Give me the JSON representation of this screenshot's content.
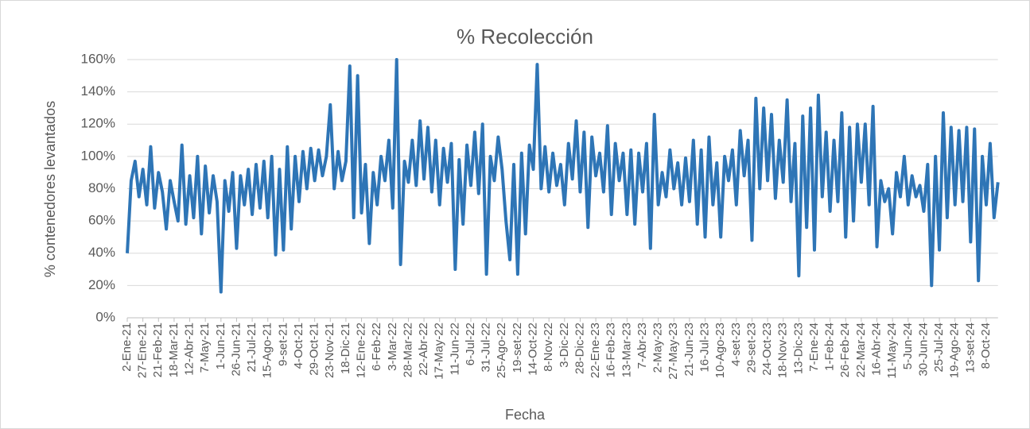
{
  "chart_data": {
    "type": "line",
    "title": "% Recolección",
    "x_label": "Fecha",
    "y_label": "% contenedores levantados",
    "categories": [
      "2-Ene-21",
      null,
      null,
      null,
      "27-Ene-21",
      null,
      null,
      null,
      "21-Feb-21",
      null,
      null,
      null,
      "18-Mar-21",
      null,
      null,
      null,
      "12-Abr-21",
      null,
      null,
      null,
      "7-May-21",
      null,
      null,
      null,
      "1-Jun-21",
      null,
      null,
      null,
      "26-Jun-21",
      null,
      null,
      null,
      "21-Jul-21",
      null,
      null,
      null,
      "15-Ago-21",
      null,
      null,
      null,
      "9-set-21",
      null,
      null,
      null,
      "4-Oct-21",
      null,
      null,
      null,
      "29-Oct-21",
      null,
      null,
      null,
      "23-Nov-21",
      null,
      null,
      null,
      "18-Dic-21",
      null,
      null,
      null,
      "12-Ene-22",
      null,
      null,
      null,
      "6-Feb-22",
      null,
      null,
      null,
      "3-Mar-22",
      null,
      null,
      null,
      "28-Mar-22",
      null,
      null,
      null,
      "22-Abr-22",
      null,
      null,
      null,
      "17-May-22",
      null,
      null,
      null,
      "11-Jun-22",
      null,
      null,
      null,
      "6-Jul-22",
      null,
      null,
      null,
      "31-Jul-22",
      null,
      null,
      null,
      "25-Ago-22",
      null,
      null,
      null,
      "19-set-22",
      null,
      null,
      null,
      "14-Oct-22",
      null,
      null,
      null,
      "8-Nov-22",
      null,
      null,
      null,
      "3-Dic-22",
      null,
      null,
      null,
      "28-Dic-22",
      null,
      null,
      null,
      "22-Ene-23",
      null,
      null,
      null,
      "16-Feb-23",
      null,
      null,
      null,
      "13-Mar-23",
      null,
      null,
      null,
      "7-Abr-23",
      null,
      null,
      null,
      "2-May-23",
      null,
      null,
      null,
      "27-May-23",
      null,
      null,
      null,
      "21-Jun-23",
      null,
      null,
      null,
      "16-Jul-23",
      null,
      null,
      null,
      "10-Ago-23",
      null,
      null,
      null,
      "4-set-23",
      null,
      null,
      null,
      "29-set-23",
      null,
      null,
      null,
      "24-Oct-23",
      null,
      null,
      null,
      "18-Nov-23",
      null,
      null,
      null,
      "13-Dic-23",
      null,
      null,
      null,
      "7-Ene-24",
      null,
      null,
      null,
      "1-Feb-24",
      null,
      null,
      null,
      "26-Feb-24",
      null,
      null,
      null,
      "22-Mar-24",
      null,
      null,
      null,
      "16-Abr-24",
      null,
      null,
      null,
      "11-May-24",
      null,
      null,
      null,
      "5-Jun-24",
      null,
      null,
      null,
      "30-Jun-24",
      null,
      null,
      null,
      "25-Jul-24",
      null,
      null,
      null,
      "19-Ago-24",
      null,
      null,
      null,
      "13-set-24",
      null,
      null,
      null,
      "8-Oct-24",
      null,
      null,
      null
    ],
    "values": [
      40,
      85,
      97,
      75,
      92,
      70,
      106,
      68,
      90,
      78,
      55,
      85,
      72,
      60,
      107,
      58,
      88,
      62,
      100,
      52,
      94,
      65,
      88,
      72,
      16,
      85,
      66,
      90,
      43,
      88,
      70,
      92,
      64,
      95,
      68,
      97,
      62,
      100,
      39,
      92,
      42,
      106,
      55,
      100,
      72,
      103,
      80,
      105,
      85,
      104,
      88,
      100,
      132,
      80,
      103,
      85,
      97,
      156,
      62,
      150,
      65,
      95,
      46,
      90,
      70,
      100,
      85,
      110,
      68,
      160,
      33,
      97,
      84,
      110,
      82,
      122,
      86,
      118,
      78,
      110,
      70,
      105,
      84,
      108,
      30,
      98,
      58,
      107,
      82,
      115,
      77,
      120,
      27,
      100,
      85,
      112,
      92,
      60,
      36,
      95,
      27,
      102,
      52,
      107,
      92,
      157,
      80,
      106,
      78,
      102,
      82,
      95,
      70,
      108,
      86,
      122,
      78,
      115,
      56,
      112,
      88,
      102,
      78,
      119,
      64,
      108,
      85,
      102,
      64,
      104,
      58,
      102,
      78,
      108,
      43,
      126,
      70,
      90,
      75,
      104,
      80,
      96,
      70,
      99,
      72,
      110,
      58,
      104,
      50,
      112,
      70,
      96,
      50,
      100,
      85,
      104,
      70,
      116,
      88,
      110,
      48,
      136,
      80,
      130,
      85,
      126,
      74,
      110,
      84,
      135,
      72,
      108,
      26,
      125,
      56,
      130,
      42,
      138,
      75,
      115,
      66,
      110,
      72,
      127,
      50,
      118,
      60,
      120,
      84,
      120,
      70,
      131,
      44,
      85,
      72,
      80,
      52,
      90,
      75,
      100,
      70,
      88,
      75,
      82,
      66,
      95,
      20,
      100,
      42,
      127,
      62,
      118,
      70,
      116,
      72,
      118,
      47,
      117,
      23,
      100,
      70,
      108,
      62,
      84
    ],
    "color": "#2e75b6",
    "ylim": [
      0,
      160
    ],
    "yticks": [
      {
        "value": 0,
        "label": "0%"
      },
      {
        "value": 20,
        "label": "20%"
      },
      {
        "value": 40,
        "label": "40%"
      },
      {
        "value": 60,
        "label": "60%"
      },
      {
        "value": 80,
        "label": "80%"
      },
      {
        "value": 100,
        "label": "100%"
      },
      {
        "value": 120,
        "label": "120%"
      },
      {
        "value": 140,
        "label": "140%"
      },
      {
        "value": 160,
        "label": "160%"
      }
    ],
    "grid": true
  }
}
